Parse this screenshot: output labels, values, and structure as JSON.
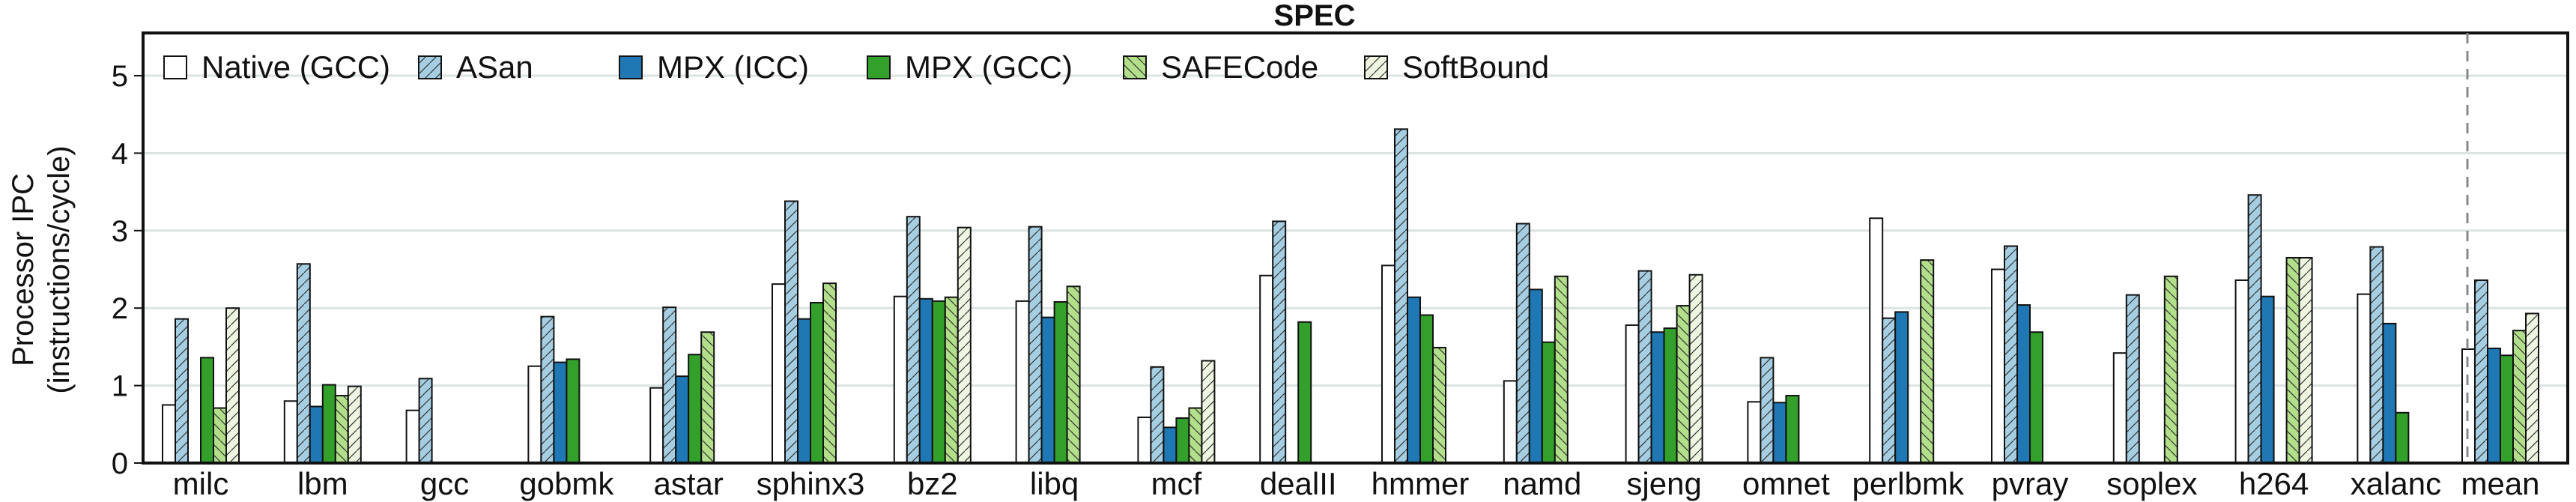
{
  "chart_data": {
    "type": "bar",
    "title": "SPEC",
    "xlabel": "",
    "ylabel": [
      "Processor IPC",
      "(instructions/cycle)"
    ],
    "ylim": [
      0,
      5.3
    ],
    "yticks": [
      "0",
      "1",
      "2",
      "3",
      "4",
      "5"
    ],
    "grid": true,
    "legend_placement": "top-left, horizontal",
    "separator_before": "mean",
    "categories": [
      "milc",
      "lbm",
      "gcc",
      "gobmk",
      "astar",
      "sphinx3",
      "bz2",
      "libq",
      "mcf",
      "dealII",
      "hmmer",
      "namd",
      "sjeng",
      "omnet",
      "perlbmk",
      "pvray",
      "soplex",
      "h264",
      "xalanc",
      "mean"
    ],
    "series": [
      {
        "name": "Native (GCC)",
        "color": "#ffffff",
        "hatch": "none",
        "values": [
          0.75,
          0.8,
          0.68,
          1.25,
          0.97,
          2.31,
          2.15,
          2.09,
          0.59,
          2.42,
          2.55,
          1.06,
          1.78,
          0.79,
          3.16,
          2.5,
          1.42,
          2.36,
          2.18,
          1.47
        ]
      },
      {
        "name": "ASan",
        "color": "#a6cee3",
        "hatch": "forward",
        "values": [
          1.86,
          2.57,
          1.09,
          1.89,
          2.01,
          3.38,
          3.18,
          3.05,
          1.24,
          3.12,
          4.31,
          3.09,
          2.48,
          1.36,
          1.87,
          2.8,
          2.17,
          3.46,
          2.79,
          2.36
        ]
      },
      {
        "name": "MPX (ICC)",
        "color": "#1f78b4",
        "hatch": "none",
        "values": [
          null,
          0.73,
          null,
          1.3,
          1.12,
          1.86,
          2.12,
          1.88,
          0.46,
          null,
          2.14,
          2.24,
          1.69,
          0.78,
          1.95,
          2.04,
          null,
          2.15,
          1.8,
          1.48
        ]
      },
      {
        "name": "MPX (GCC)",
        "color": "#33a02c",
        "hatch": "none",
        "values": [
          1.36,
          1.01,
          null,
          1.34,
          1.4,
          2.07,
          2.09,
          2.08,
          0.58,
          1.82,
          1.91,
          1.56,
          1.74,
          0.87,
          null,
          1.69,
          null,
          null,
          0.65,
          1.39
        ]
      },
      {
        "name": "SAFECode",
        "color": "#b2df8a",
        "hatch": "backward",
        "values": [
          0.71,
          0.87,
          null,
          null,
          1.69,
          2.32,
          2.14,
          2.28,
          0.71,
          null,
          1.49,
          2.41,
          2.03,
          null,
          2.62,
          null,
          2.41,
          2.65,
          null,
          1.71
        ]
      },
      {
        "name": "SoftBound",
        "color": "#eef6e2",
        "hatch": "forward",
        "values": [
          2.0,
          0.99,
          null,
          null,
          null,
          null,
          3.04,
          null,
          1.32,
          null,
          null,
          null,
          2.43,
          null,
          null,
          null,
          null,
          2.65,
          null,
          1.93
        ]
      }
    ]
  }
}
